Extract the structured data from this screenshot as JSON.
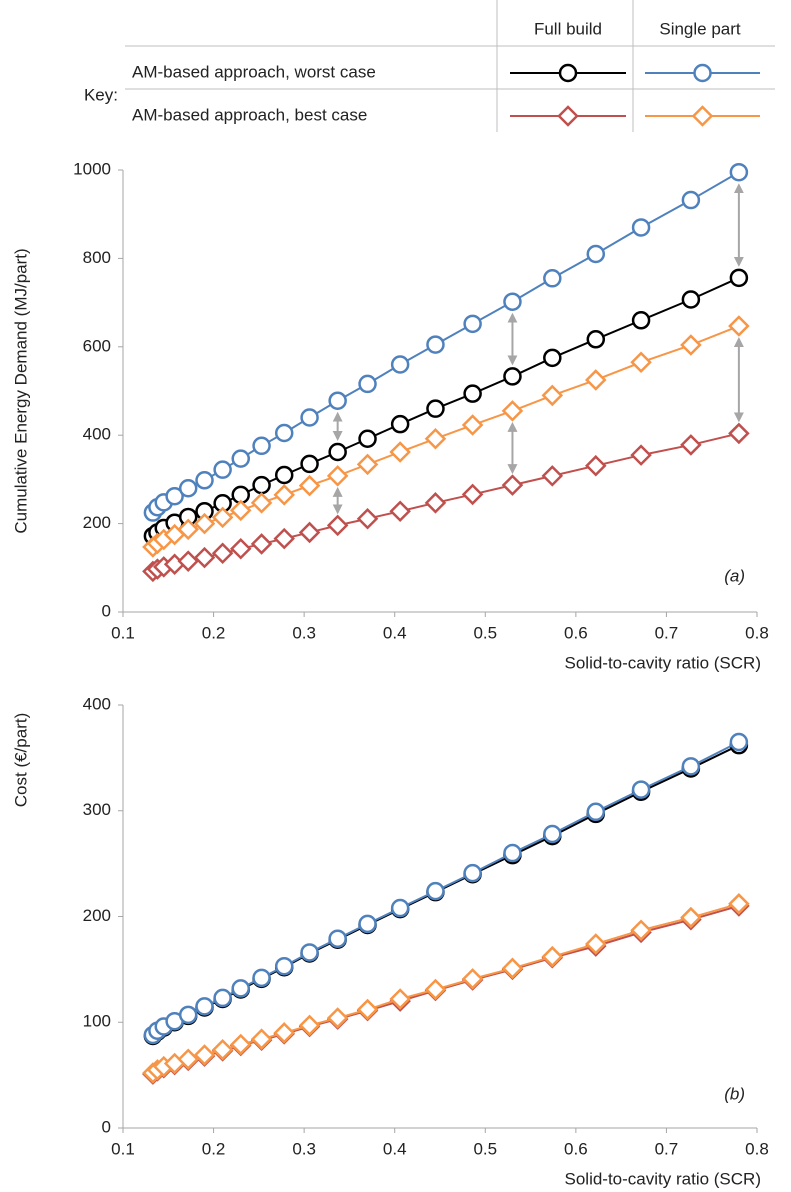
{
  "key": {
    "label": "Key:",
    "columns": [
      "Full build",
      "Single part"
    ],
    "rows": [
      "AM-based approach, worst case",
      "AM-based approach, best case"
    ]
  },
  "chart_data": [
    {
      "type": "line",
      "y_label": "Cumulative  Energy Demand (MJ/part)",
      "x_label": "Solid-to-cavity ratio (SCR)",
      "annotation": "(a)",
      "xlim": [
        0.1,
        0.8
      ],
      "xticks": [
        0.1,
        0.2,
        0.3,
        0.4,
        0.5,
        0.6,
        0.7,
        0.8
      ],
      "ylim": [
        0,
        1000
      ],
      "yticks": [
        0,
        200,
        400,
        600,
        800,
        1000
      ],
      "x": [
        0.133,
        0.138,
        0.145,
        0.157,
        0.172,
        0.19,
        0.21,
        0.23,
        0.253,
        0.278,
        0.306,
        0.337,
        0.37,
        0.406,
        0.445,
        0.486,
        0.53,
        0.574,
        0.622,
        0.672,
        0.727,
        0.78
      ],
      "series": [
        {
          "color": "#000000",
          "marker": "circle",
          "values": [
            172,
            180,
            190,
            202,
            215,
            228,
            246,
            265,
            287,
            310,
            335,
            362,
            392,
            425,
            460,
            494,
            533,
            575,
            617,
            660,
            707,
            756
          ]
        },
        {
          "color": "#4f81bd",
          "marker": "circle",
          "values": [
            225,
            237,
            248,
            262,
            280,
            298,
            322,
            347,
            376,
            405,
            440,
            478,
            516,
            560,
            605,
            652,
            702,
            755,
            810,
            870,
            932,
            995
          ]
        },
        {
          "color": "#c0504d",
          "marker": "diamond",
          "values": [
            92,
            97,
            102,
            108,
            115,
            123,
            133,
            143,
            154,
            166,
            180,
            196,
            211,
            228,
            247,
            266,
            287,
            308,
            331,
            355,
            378,
            404
          ]
        },
        {
          "color": "#f79646",
          "marker": "diamond",
          "values": [
            147,
            155,
            164,
            175,
            187,
            200,
            214,
            230,
            247,
            265,
            286,
            308,
            334,
            362,
            392,
            423,
            455,
            490,
            525,
            565,
            604,
            647
          ]
        }
      ]
    },
    {
      "type": "line",
      "y_label": "Cost (€/part)",
      "x_label": "Solid-to-cavity ratio (SCR)",
      "annotation": "(b)",
      "xlim": [
        0.1,
        0.8
      ],
      "xticks": [
        0.1,
        0.2,
        0.3,
        0.4,
        0.5,
        0.6,
        0.7,
        0.8
      ],
      "ylim": [
        0,
        400
      ],
      "yticks": [
        0,
        100,
        200,
        300,
        400
      ],
      "x": [
        0.133,
        0.138,
        0.145,
        0.157,
        0.172,
        0.19,
        0.21,
        0.23,
        0.253,
        0.278,
        0.306,
        0.337,
        0.37,
        0.406,
        0.445,
        0.486,
        0.53,
        0.574,
        0.622,
        0.672,
        0.727,
        0.78
      ],
      "series": [
        {
          "color": "#000000",
          "marker": "circle",
          "values": [
            87,
            91,
            95,
            100,
            106,
            114,
            122,
            131,
            141,
            152,
            165,
            178,
            192,
            207,
            223,
            240,
            258,
            276,
            297,
            318,
            340,
            362
          ]
        },
        {
          "color": "#4f81bd",
          "marker": "circle",
          "values": [
            88,
            92,
            96,
            101,
            107,
            115,
            123,
            132,
            142,
            153,
            166,
            179,
            193,
            208,
            224,
            241,
            260,
            278,
            299,
            320,
            342,
            365
          ]
        },
        {
          "color": "#c0504d",
          "marker": "diamond",
          "values": [
            51,
            54,
            57,
            60,
            64,
            68,
            73,
            78,
            83,
            89,
            96,
            103,
            111,
            120,
            130,
            140,
            150,
            161,
            172,
            185,
            197,
            210
          ]
        },
        {
          "color": "#f79646",
          "marker": "diamond",
          "values": [
            52,
            55,
            58,
            61,
            65,
            69,
            74,
            79,
            84,
            90,
            97,
            104,
            112,
            122,
            131,
            141,
            151,
            162,
            174,
            187,
            199,
            212
          ]
        }
      ]
    }
  ]
}
